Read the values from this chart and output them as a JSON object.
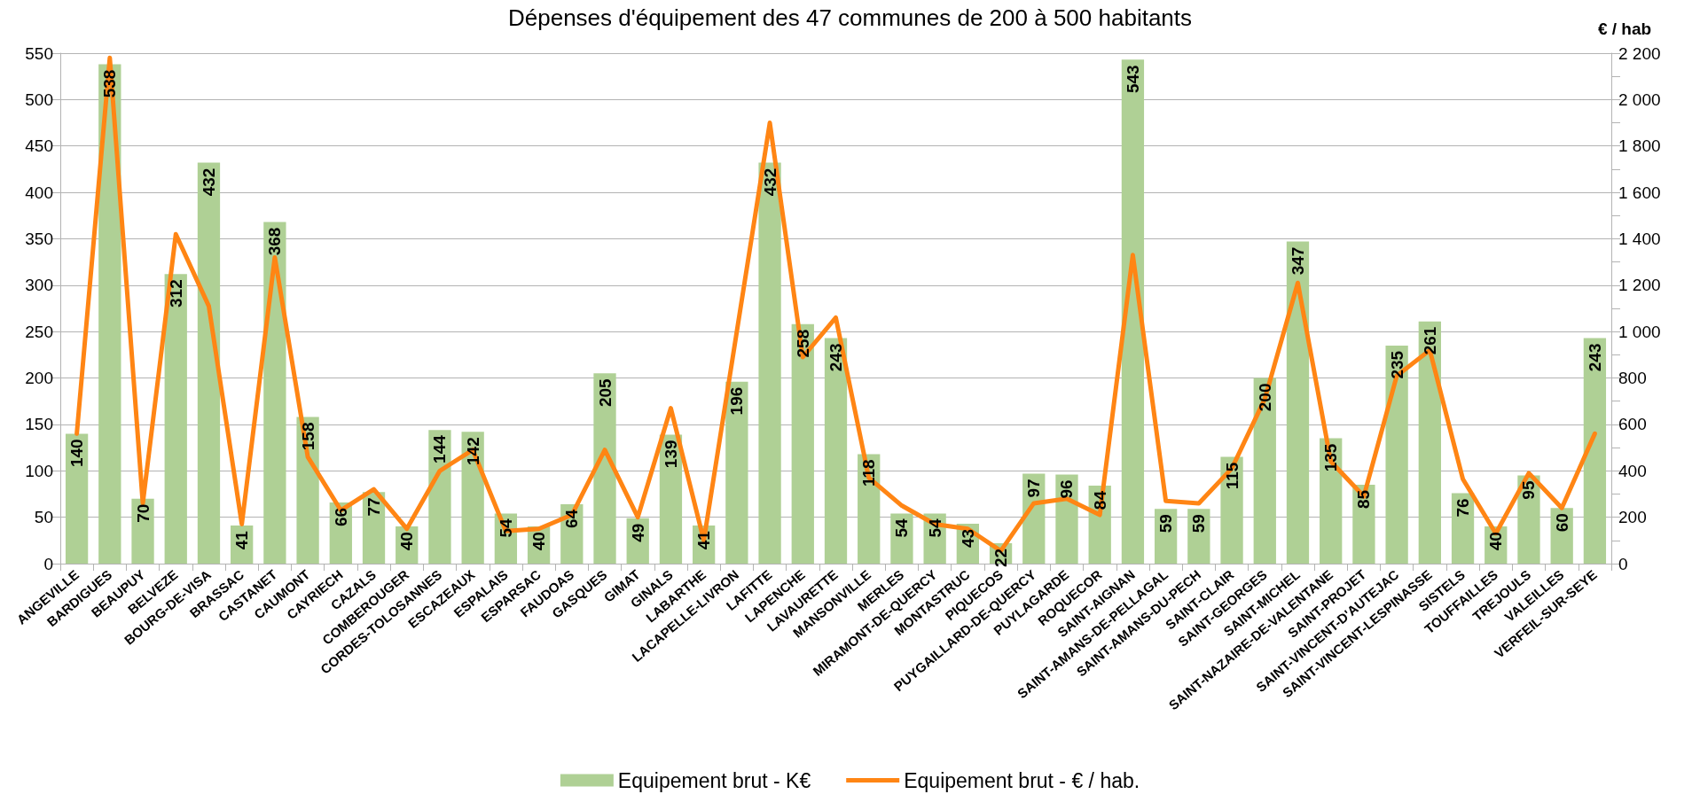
{
  "chart_data": {
    "type": "bar",
    "title": "Dépenses d'équipement des 47 communes de 200 à 500 habitants",
    "y2label": "€ / hab",
    "categories": [
      "ANGEVILLE",
      "BARDIGUES",
      "BEAUPUY",
      "BELVEZE",
      "BOURG-DE-VISA",
      "BRASSAC",
      "CASTANET",
      "CAUMONT",
      "CAYRIECH",
      "CAZALS",
      "COMBEROUGER",
      "CORDES-TOLOSANNES",
      "ESCAZEAUX",
      "ESPALAIS",
      "ESPARSAC",
      "FAUDOAS",
      "GASQUES",
      "GIMAT",
      "GINALS",
      "LABARTHE",
      "LACAPELLE-LIVRON",
      "LAFITTE",
      "LAPENCHE",
      "LAVAURETTE",
      "MANSONVILLE",
      "MERLES",
      "MIRAMONT-DE-QUERCY",
      "MONTASTRUC",
      "PIQUECOS",
      "PUYGAILLARD-DE-QUERCY",
      "PUYLAGARDE",
      "ROQUECOR",
      "SAINT-AIGNAN",
      "SAINT-AMANS-DE-PELLAGAL",
      "SAINT-AMANS-DU-PECH",
      "SAINT-CLAIR",
      "SAINT-GEORGES",
      "SAINT-MICHEL",
      "SAINT-NAZAIRE-DE-VALENTANE",
      "SAINT-PROJET",
      "SAINT-VINCENT-D'AUTEJAC",
      "SAINT-VINCENT-LESPINASSE",
      "SISTELS",
      "TOUFFAILLES",
      "TREJOULS",
      "VALEILLES",
      "VERFEIL-SUR-SEYE"
    ],
    "series": [
      {
        "name": "Equipement brut - K€",
        "type": "bar",
        "color": "#afd095",
        "data_labels": true,
        "values": [
          140,
          538,
          70,
          312,
          432,
          41,
          368,
          158,
          66,
          77,
          40,
          144,
          142,
          54,
          40,
          64,
          205,
          49,
          139,
          41,
          196,
          432,
          258,
          243,
          118,
          54,
          54,
          43,
          22,
          97,
          96,
          84,
          543,
          59,
          59,
          115,
          200,
          347,
          135,
          85,
          235,
          261,
          76,
          40,
          95,
          60,
          243
        ]
      },
      {
        "name": "Equipement brut - € / hab.",
        "type": "line",
        "axis": "y2",
        "color": "#ff8514",
        "marker": "none",
        "line_style": "solid",
        "values": [
          560,
          2180,
          260,
          1420,
          1110,
          170,
          1320,
          460,
          230,
          320,
          150,
          400,
          490,
          140,
          150,
          210,
          490,
          200,
          670,
          100,
          1000,
          1900,
          890,
          1060,
          370,
          250,
          170,
          150,
          55,
          260,
          280,
          210,
          1330,
          270,
          260,
          410,
          710,
          1210,
          440,
          290,
          810,
          920,
          365,
          130,
          390,
          240,
          560
        ]
      }
    ],
    "ylim": [
      0,
      550
    ],
    "yticks": [
      0,
      50,
      100,
      150,
      200,
      250,
      300,
      350,
      400,
      450,
      500,
      550
    ],
    "y2lim": [
      0,
      2200
    ],
    "y2ticks": [
      0,
      {
        "value": 100,
        "label": null
      },
      200,
      {
        "value": 300,
        "label": null
      },
      400,
      {
        "value": 500,
        "label": null
      },
      600,
      {
        "value": 700,
        "label": null
      },
      800,
      {
        "value": 900,
        "label": null
      },
      {
        "value": 1000,
        "label": "1 000"
      },
      {
        "value": 1100,
        "label": null
      },
      {
        "value": 1200,
        "label": "1 200"
      },
      {
        "value": 1300,
        "label": null
      },
      {
        "value": 1400,
        "label": "1 400"
      },
      {
        "value": 1500,
        "label": null
      },
      {
        "value": 1600,
        "label": "1 600"
      },
      {
        "value": 1700,
        "label": null
      },
      {
        "value": 1800,
        "label": "1 800"
      },
      {
        "value": 1900,
        "label": null
      },
      {
        "value": 2000,
        "label": "2 000"
      },
      {
        "value": 2100,
        "label": null
      },
      {
        "value": 2200,
        "label": "2 200"
      }
    ],
    "grid": "y",
    "legend": "bottom"
  }
}
